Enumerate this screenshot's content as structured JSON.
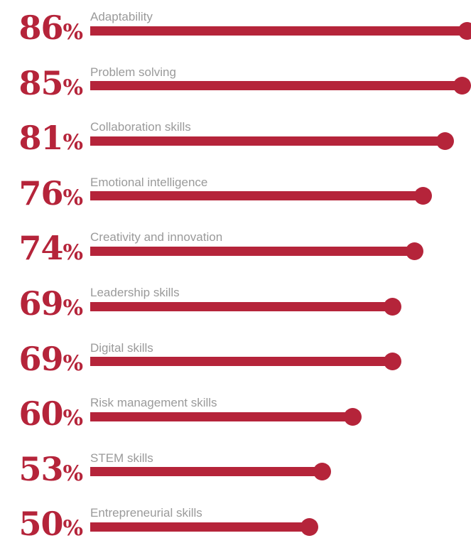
{
  "chart_data": {
    "type": "bar",
    "orientation": "horizontal",
    "value_suffix": "%",
    "xlim": [
      0,
      86
    ],
    "colors": {
      "bar": "#b5243a",
      "label": "#9a9a9a",
      "value": "#b5243a"
    },
    "categories": [
      "Adaptability",
      "Problem solving",
      "Collaboration skills",
      "Emotional intelligence",
      "Creativity and innovation",
      "Leadership skills",
      "Digital skills",
      "Risk management skills",
      "STEM skills",
      "Entrepreneurial skills"
    ],
    "values": [
      86,
      85,
      81,
      76,
      74,
      69,
      69,
      60,
      53,
      50
    ],
    "value_labels": [
      "86",
      "85",
      "81",
      "76",
      "74",
      "69",
      "69",
      "60",
      "53",
      "50"
    ]
  }
}
